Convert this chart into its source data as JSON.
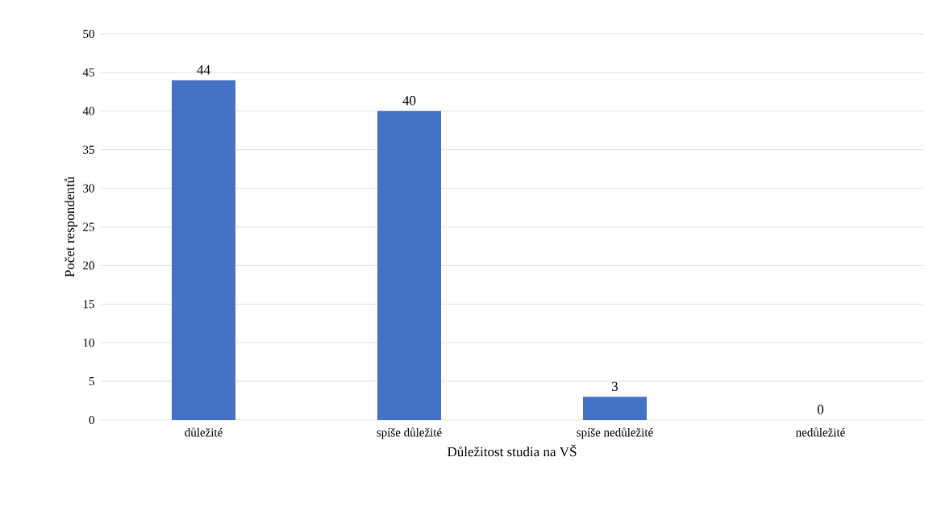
{
  "chart_data": {
    "type": "bar",
    "categories": [
      "důležité",
      "spíše důležité",
      "spíše nedůležité",
      "nedůležité"
    ],
    "values": [
      44,
      40,
      3,
      0
    ],
    "color": "#4472c4",
    "xlabel": "Důležitost studia na VŠ",
    "ylabel": "Počet respondentů",
    "ylim": [
      0,
      50
    ],
    "yticks": [
      0,
      5,
      10,
      15,
      20,
      25,
      30,
      35,
      40,
      45,
      50
    ],
    "grid": "y",
    "data_labels": true
  }
}
